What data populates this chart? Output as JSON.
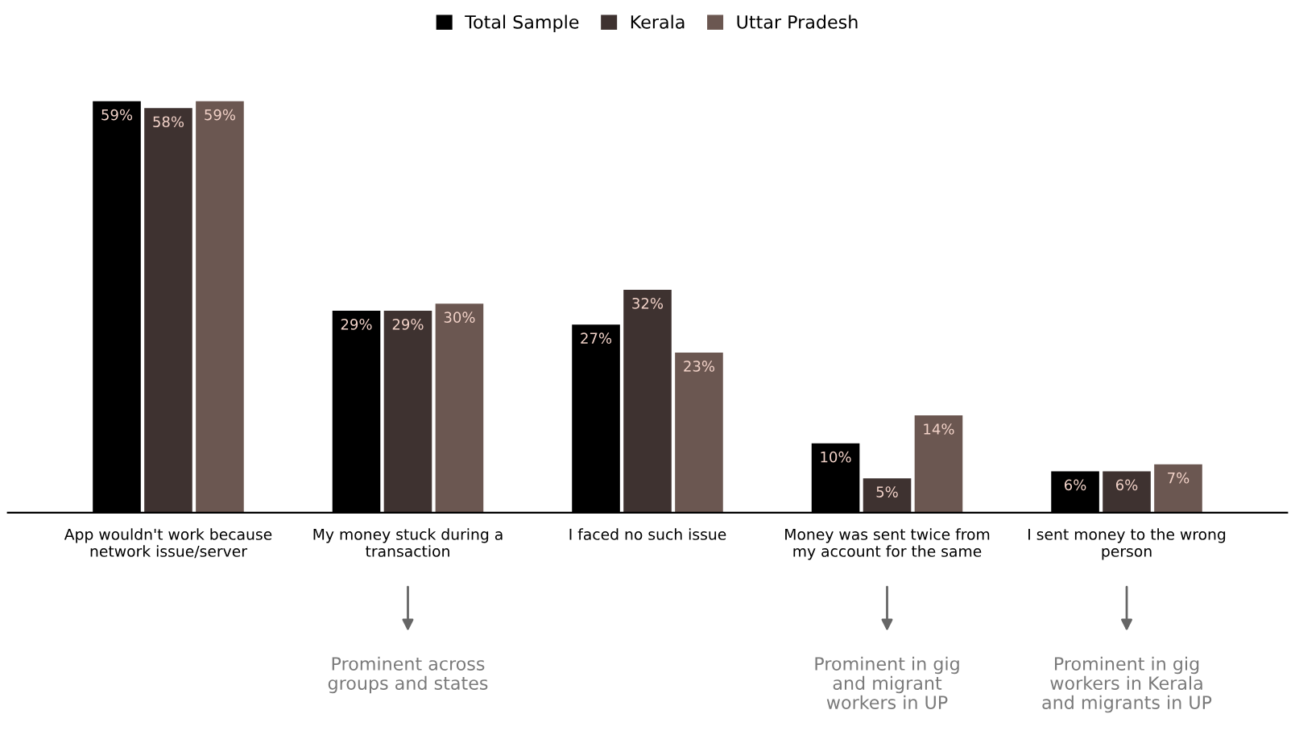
{
  "chart_data": {
    "type": "bar",
    "categories": [
      "App wouldn't work because\nnetwork issue/server",
      "My money stuck during a\ntransaction",
      "I faced no such issue",
      "Money was sent twice from\nmy account for the same",
      "I sent money to the wrong\nperson"
    ],
    "series": [
      {
        "name": "Total Sample",
        "color": "#000000",
        "values": [
          59,
          29,
          27,
          10,
          6
        ],
        "value_labels": [
          "59%",
          "29%",
          "27%",
          "10%",
          "6%"
        ]
      },
      {
        "name": "Kerala",
        "color": "#3e3230",
        "values": [
          58,
          29,
          32,
          5,
          6
        ],
        "value_labels": [
          "58%",
          "29%",
          "32%",
          "5%",
          "6%"
        ]
      },
      {
        "name": "Uttar Pradesh",
        "color": "#6b5751",
        "values": [
          59,
          30,
          23,
          14,
          7
        ],
        "value_labels": [
          "59%",
          "30%",
          "23%",
          "14%",
          "7%"
        ]
      }
    ],
    "legend": "top",
    "grid": false,
    "annotations": [
      "Prominent across\ngroups and states",
      "Prominent in gig\nand migrant\nworkers in UP",
      "Prominent in gig\nworkers in Kerala\nand migrants in UP"
    ]
  }
}
